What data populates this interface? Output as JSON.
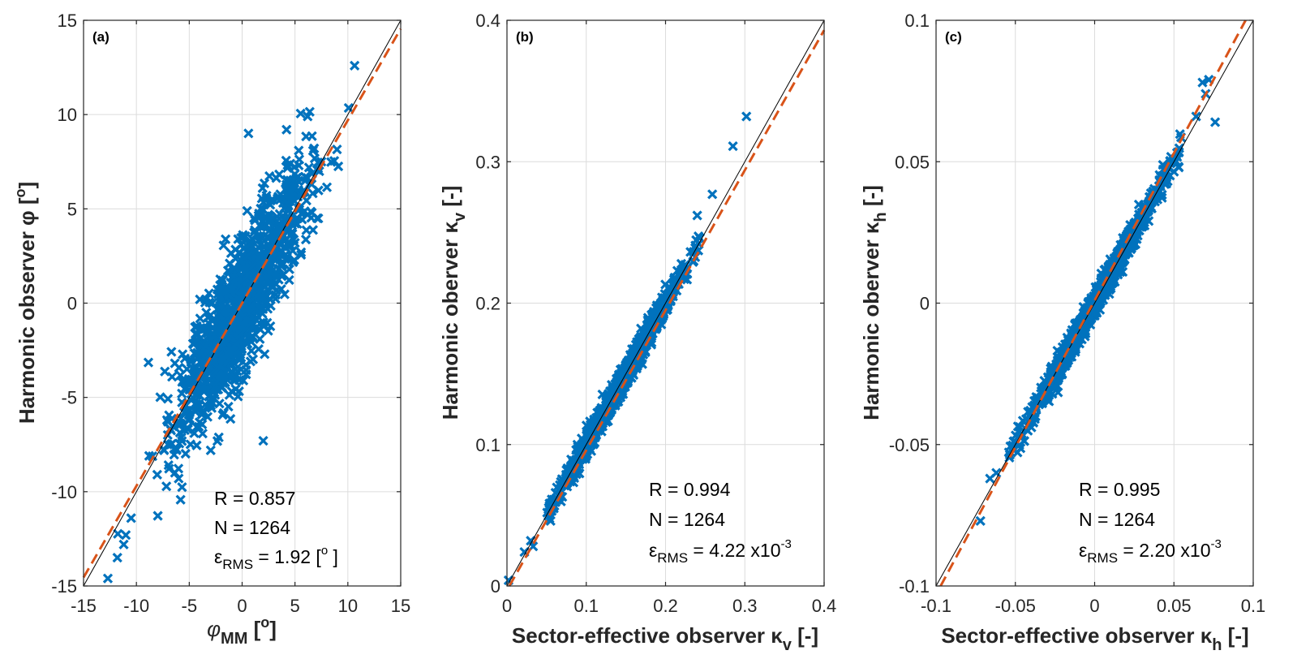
{
  "chart_data": [
    {
      "type": "scatter",
      "panel_label": "(a)",
      "xlabel_main": "φ",
      "xlabel_sub": "MM",
      "xlabel_tail": " [",
      "xlabel_deg": "o",
      "xlabel_close": "]",
      "ylabel_main": "Harmonic observer φ [",
      "ylabel_deg": "o",
      "ylabel_close": "]",
      "xlim": [
        -15,
        15
      ],
      "ylim": [
        -15,
        15
      ],
      "xticks": [
        -15,
        -10,
        -5,
        0,
        5,
        10,
        15
      ],
      "yticks": [
        -15,
        -10,
        -5,
        0,
        5,
        10,
        15
      ],
      "xtick_labels": [
        "-15",
        "-10",
        "-5",
        "0",
        "5",
        "10",
        "15"
      ],
      "ytick_labels": [
        "-15",
        "-10",
        "-5",
        "0",
        "5",
        "10",
        "15"
      ],
      "stats": {
        "r_text": "R = 0.857",
        "n_text": "N = 1264",
        "eps_symbol": "ε",
        "eps_sub": "RMS",
        "eps_value": " = 1.92 [",
        "eps_unit_sup": "o",
        "eps_unit_close": " ]"
      },
      "fit_line": {
        "slope": 0.97,
        "intercept": 0.0
      },
      "cloud": {
        "count": 1264,
        "slope": 0.98,
        "x_mean": 0.0,
        "x_sd": 3.0,
        "resid_sd": 1.75
      },
      "outliers": [
        [
          -12.7,
          -14.6
        ],
        [
          -11.8,
          -13.5
        ],
        [
          -11.2,
          -12.8
        ],
        [
          -11.0,
          -12.3
        ],
        [
          -8.8,
          -8.1
        ],
        [
          -6.0,
          -9.3
        ],
        [
          2.0,
          -7.3
        ],
        [
          6.2,
          9.9
        ],
        [
          0.6,
          9.0
        ],
        [
          -10.5,
          -11.4
        ],
        [
          4.2,
          9.2
        ],
        [
          7.5,
          7.5
        ],
        [
          6.8,
          8.2
        ]
      ]
    },
    {
      "type": "scatter",
      "panel_label": "(b)",
      "xlabel_main": "Sector-effective observer κ",
      "xlabel_sub": "v",
      "xlabel_tail": " [-]",
      "ylabel_main": "Harmonic oberver κ",
      "ylabel_sub": "v",
      "ylabel_tail": " [-]",
      "xlim": [
        0,
        0.4
      ],
      "ylim": [
        0,
        0.4
      ],
      "xticks": [
        0,
        0.1,
        0.2,
        0.3,
        0.4
      ],
      "yticks": [
        0,
        0.1,
        0.2,
        0.3,
        0.4
      ],
      "xtick_labels": [
        "0",
        "0.1",
        "0.2",
        "0.3",
        "0.4"
      ],
      "ytick_labels": [
        "0",
        "0.1",
        "0.2",
        "0.3",
        "0.4"
      ],
      "stats": {
        "r_text": "R = 0.994",
        "n_text": "N = 1264",
        "eps_symbol": "ε",
        "eps_sub": "RMS",
        "eps_value": " = 4.22 x10",
        "eps_exp": "-3"
      },
      "fit_line": {
        "slope": 0.99,
        "intercept": -0.003
      },
      "cloud": {
        "count": 1264,
        "slope": 1.0,
        "x_mean": 0.145,
        "x_sd": 0.038,
        "x_min": 0.05,
        "x_max": 0.245,
        "resid_sd": 0.0042
      },
      "outliers": [
        [
          0.002,
          0.004
        ],
        [
          0.022,
          0.024
        ],
        [
          0.03,
          0.032
        ],
        [
          0.033,
          0.028
        ],
        [
          0.055,
          0.046
        ],
        [
          0.24,
          0.262
        ],
        [
          0.259,
          0.277
        ],
        [
          0.285,
          0.311
        ],
        [
          0.302,
          0.332
        ]
      ]
    },
    {
      "type": "scatter",
      "panel_label": "(c)",
      "xlabel_main": "Sector-effective observer κ",
      "xlabel_sub": "h",
      "xlabel_tail": " [-]",
      "ylabel_main": "Harmonic oberver κ",
      "ylabel_sub": "h",
      "ylabel_tail": " [-]",
      "xlim": [
        -0.1,
        0.1
      ],
      "ylim": [
        -0.1,
        0.1
      ],
      "xticks": [
        -0.1,
        -0.05,
        0,
        0.05,
        0.1
      ],
      "yticks": [
        -0.1,
        -0.05,
        0,
        0.05,
        0.1
      ],
      "xtick_labels": [
        "-0.1",
        "-0.05",
        "0",
        "0.05",
        "0.1"
      ],
      "ytick_labels": [
        "-0.1",
        "-0.05",
        "0",
        "0.05",
        "0.1"
      ],
      "stats": {
        "r_text": "R = 0.995",
        "n_text": "N = 1264",
        "eps_symbol": "ε",
        "eps_sub": "RMS",
        "eps_value": " = 2.20 x10",
        "eps_exp": "-3"
      },
      "fit_line": {
        "slope": 1.04,
        "intercept": 0.001
      },
      "cloud": {
        "count": 1264,
        "slope": 1.0,
        "x_mean": 0.0,
        "x_sd": 0.022,
        "x_min": -0.055,
        "x_max": 0.055,
        "resid_sd": 0.0022
      },
      "outliers": [
        [
          -0.072,
          -0.077
        ],
        [
          -0.066,
          -0.062
        ],
        [
          -0.062,
          -0.06
        ],
        [
          0.064,
          0.066
        ],
        [
          0.07,
          0.074
        ],
        [
          0.072,
          0.079
        ],
        [
          0.076,
          0.064
        ],
        [
          0.068,
          0.078
        ]
      ]
    }
  ]
}
